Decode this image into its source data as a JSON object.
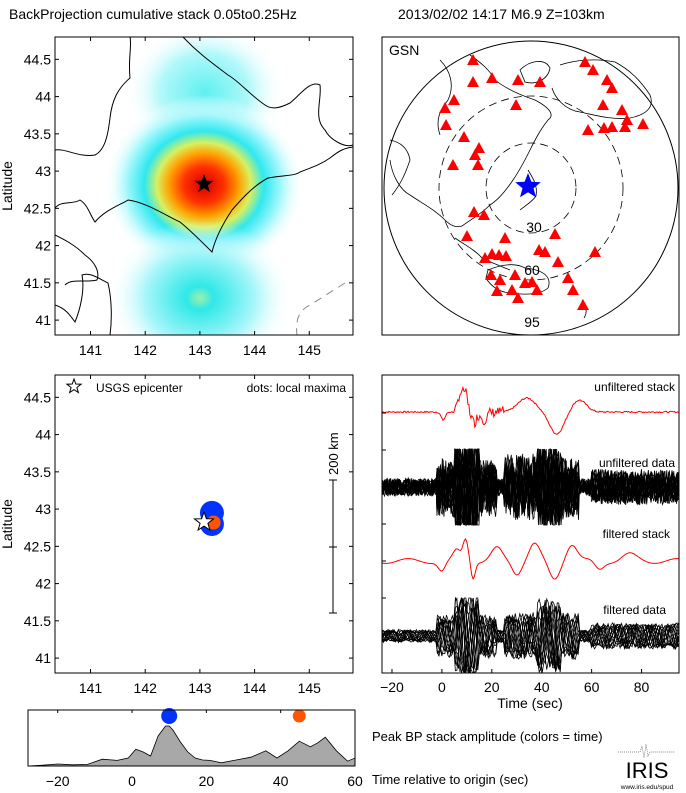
{
  "header": {
    "title": "BackProjection cumulative stack 0.05to0.25Hz",
    "event": "2013/02/02 14:17  M6.9  Z=103km"
  },
  "colors": {
    "stack_trace": "#ff0000",
    "data_trace": "#000000",
    "epicenter_star_global": "#0000ff",
    "station_marker": "#ff0000",
    "early_dot": "#0033ff",
    "late_dot": "#ff5500",
    "peak_fill": "#a8a8a8",
    "coast_top": "#000000",
    "coast_bottom": "#b0b0b0"
  },
  "chart_data": [
    {
      "type": "heatmap",
      "name": "backprojection-map",
      "ylabel": "Latitude",
      "xlim": [
        140.35,
        145.8
      ],
      "ylim": [
        40.8,
        44.8
      ],
      "xticks": [
        "141",
        "142",
        "143",
        "144",
        "145"
      ],
      "yticks": [
        "41",
        "41.5",
        "42",
        "42.5",
        "43",
        "43.5",
        "44",
        "44.5"
      ],
      "blobs": [
        {
          "lon": 143.15,
          "lat": 42.82,
          "peak": 1.0
        },
        {
          "lon": 143.3,
          "lat": 44.15,
          "peak": 0.3
        },
        {
          "lon": 143.0,
          "lat": 41.3,
          "peak": 0.38
        }
      ],
      "epicenter": {
        "lon": 143.07,
        "lat": 42.82,
        "marker": "star"
      }
    },
    {
      "type": "scatter",
      "name": "station-map",
      "label": "GSN",
      "ring_labels": [
        "30",
        "60",
        "95"
      ],
      "epicenter_marker": "blue-star"
    },
    {
      "type": "scatter",
      "name": "local-maxima-map",
      "ylabel": "Latitude",
      "xlim": [
        140.35,
        145.8
      ],
      "ylim": [
        40.8,
        44.8
      ],
      "xticks": [
        "141",
        "142",
        "143",
        "144",
        "145"
      ],
      "yticks": [
        "41",
        "41.5",
        "42",
        "42.5",
        "43",
        "43.5",
        "44",
        "44.5"
      ],
      "legend_star": "USGS epicenter",
      "legend_dots": "dots: local maxima",
      "scale_label": "200 km",
      "epicenter": {
        "lon": 143.07,
        "lat": 42.82
      },
      "maxima": [
        {
          "lon": 143.22,
          "lat": 42.95,
          "time": 9,
          "color": "#0033ff"
        },
        {
          "lon": 143.22,
          "lat": 42.8,
          "time": 12,
          "color": "#0033ff"
        },
        {
          "lon": 143.25,
          "lat": 42.82,
          "time": 45,
          "color": "#ff5500"
        }
      ]
    },
    {
      "type": "line",
      "name": "seismograms",
      "xlabel": "Time (sec)",
      "xlim": [
        -24,
        95
      ],
      "xticks": [
        -20,
        0,
        20,
        40,
        60,
        80
      ],
      "xtick_labels": [
        "−20",
        "0",
        "20",
        "40",
        "60",
        "80"
      ],
      "series": [
        {
          "name": "unfiltered stack",
          "color": "#ff0000"
        },
        {
          "name": "unfiltered data",
          "color": "#000000"
        },
        {
          "name": "filtered stack",
          "color": "#ff0000"
        },
        {
          "name": "filtered data",
          "color": "#000000"
        }
      ]
    },
    {
      "type": "area",
      "name": "peak-stack-amplitude",
      "title": "Peak BP stack amplitude (colors = time)",
      "xlabel": "Time relative to origin (sec)",
      "xlim": [
        -28,
        60
      ],
      "ylim": [
        0,
        1
      ],
      "xticks": [
        -20,
        0,
        20,
        40,
        60
      ],
      "xtick_labels": [
        "−20",
        "0",
        "20",
        "40",
        "60"
      ],
      "x": [
        -28,
        -24,
        -20,
        -16,
        -12,
        -8,
        -4,
        -1,
        1,
        3,
        5,
        7,
        9,
        10,
        11,
        13,
        15,
        17,
        19,
        21,
        24,
        28,
        32,
        36,
        39,
        42,
        45,
        48,
        50,
        52,
        55,
        58,
        60
      ],
      "y": [
        0.0,
        0.02,
        0.05,
        0.03,
        0.04,
        0.17,
        0.14,
        0.2,
        0.42,
        0.35,
        0.25,
        0.75,
        1.0,
        1.0,
        0.9,
        0.6,
        0.35,
        0.2,
        0.15,
        0.14,
        0.08,
        0.15,
        0.22,
        0.38,
        0.2,
        0.38,
        0.62,
        0.48,
        0.58,
        0.72,
        0.38,
        0.12,
        0.2
      ],
      "markers": [
        {
          "x": 10,
          "color": "#0033ff"
        },
        {
          "x": 45,
          "color": "#ff5500"
        }
      ]
    }
  ],
  "logo": {
    "name": "IRIS",
    "url_text": "www.iris.edu/spud"
  }
}
